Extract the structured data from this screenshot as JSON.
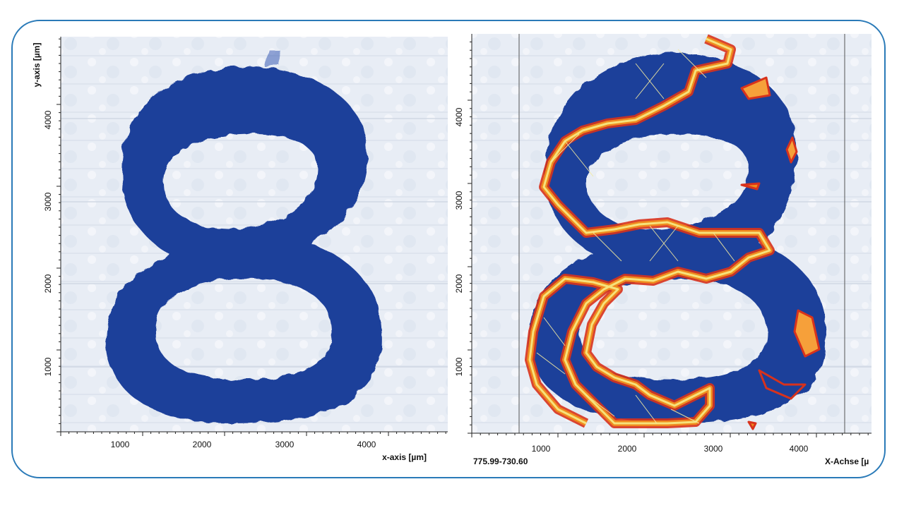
{
  "left_plot": {
    "y_axis_label": "y-axis [µm]",
    "x_axis_label": "x-axis [µm]",
    "x_ticks": [
      "1000",
      "2000",
      "3000",
      "4000"
    ],
    "y_ticks": [
      "1000",
      "2000",
      "3000",
      "4000"
    ]
  },
  "right_plot": {
    "x_axis_label": "X-Achse [µ",
    "range_readout": "775.99-730.60",
    "x_ticks": [
      "1000",
      "2000",
      "3000",
      "4000"
    ],
    "y_ticks": [
      "1000",
      "2000",
      "3000",
      "4000"
    ]
  },
  "colors": {
    "frame": "#2a7ab8",
    "paper": "#e6ecf4",
    "ink": "#1f3f9a",
    "contour_outer": "#d8321c",
    "contour_mid": "#f08a1e",
    "contour_inner": "#f6e27a"
  }
}
